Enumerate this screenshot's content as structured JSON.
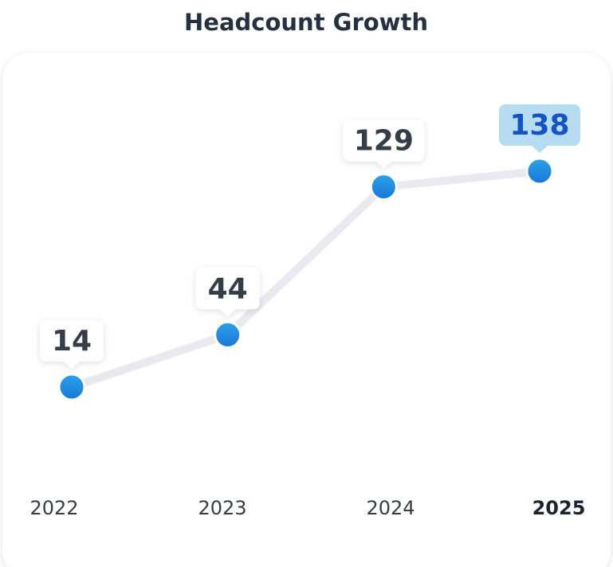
{
  "chart_data": {
    "type": "line",
    "title": "Headcount Growth",
    "categories": [
      "2022",
      "2023",
      "2024",
      "2025"
    ],
    "values": [
      14,
      44,
      129,
      138
    ],
    "color": "#1e88e5",
    "line_color": "#e9e9f0",
    "highlight_index": 3
  }
}
